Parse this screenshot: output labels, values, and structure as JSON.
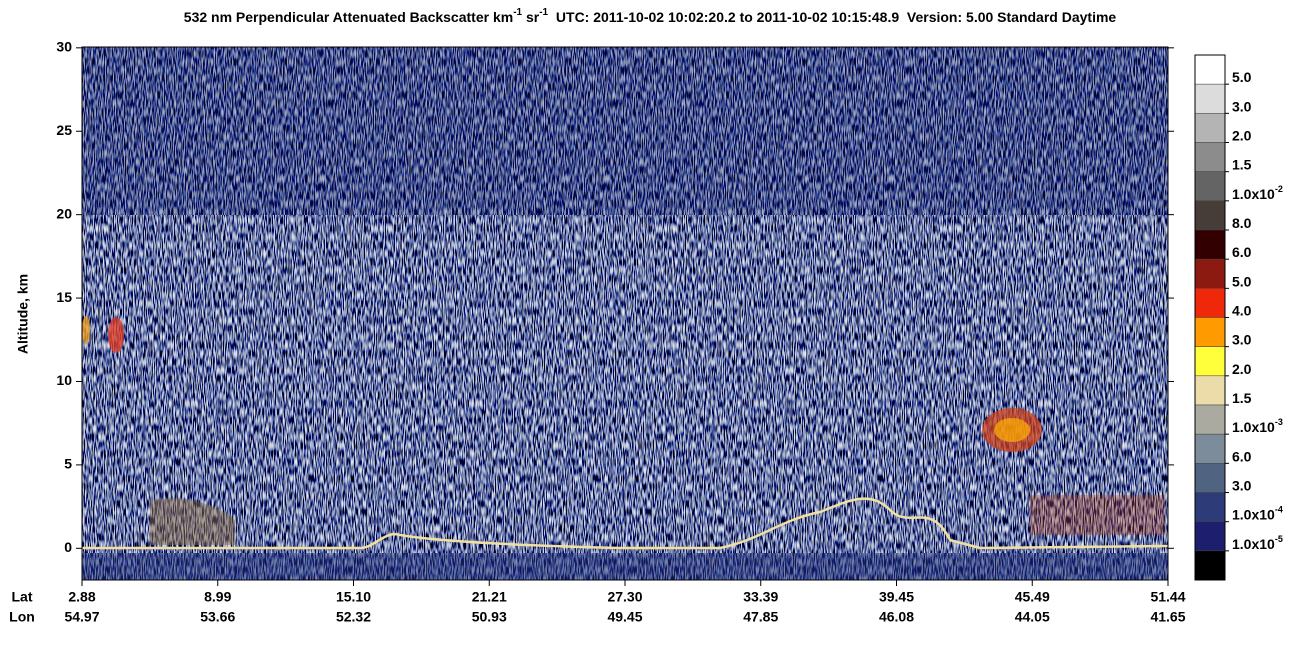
{
  "chart_data": {
    "type": "heatmap",
    "title_parts": [
      "532 nm Perpendicular Attenuated Backscatter km",
      "-1",
      " sr",
      "-1",
      "  UTC: 2011-10-02 10:02:20.2 to 2011-10-02 10:15:48.9  Version: 5.00 Standard Daytime"
    ],
    "y_label": "Altitude, km",
    "ylim": [
      -1.9,
      30.05
    ],
    "yticks": [
      0,
      5,
      10,
      15,
      20,
      25,
      30
    ],
    "x_row_labels": [
      "Lat",
      "Lon"
    ],
    "lat_labels": [
      "2.88",
      "8.99",
      "15.10",
      "21.21",
      "27.30",
      "33.39",
      "39.45",
      "45.49",
      "51.44"
    ],
    "lon_labels": [
      "54.97",
      "53.66",
      "52.32",
      "50.93",
      "49.45",
      "47.85",
      "46.08",
      "44.05",
      "41.65"
    ],
    "colorbar": {
      "colors": [
        "#ffffff",
        "#dcdcdc",
        "#b4b4b4",
        "#8c8c8c",
        "#646464",
        "#463c38",
        "#320000",
        "#8c1a10",
        "#f0280a",
        "#ff9b00",
        "#ffff3c",
        "#ebdcaa",
        "#aaaaa0",
        "#7d8c9b",
        "#506482",
        "#2d3c78",
        "#1e1e6e",
        "#000000"
      ],
      "labels": [
        {
          "text": "5.0"
        },
        {
          "text": "3.0"
        },
        {
          "text": "2.0"
        },
        {
          "text": "1.5"
        },
        {
          "text": "1.0x10",
          "sup": "-2"
        },
        {
          "text": "8.0"
        },
        {
          "text": "6.0"
        },
        {
          "text": "5.0"
        },
        {
          "text": "4.0"
        },
        {
          "text": "3.0"
        },
        {
          "text": "2.0"
        },
        {
          "text": "1.5"
        },
        {
          "text": "1.0x10",
          "sup": "-3"
        },
        {
          "text": "6.0"
        },
        {
          "text": "3.0"
        },
        {
          "text": "1.0x10",
          "sup": "-4"
        },
        {
          "text": "1.0x10",
          "sup": "-5"
        }
      ]
    }
  }
}
